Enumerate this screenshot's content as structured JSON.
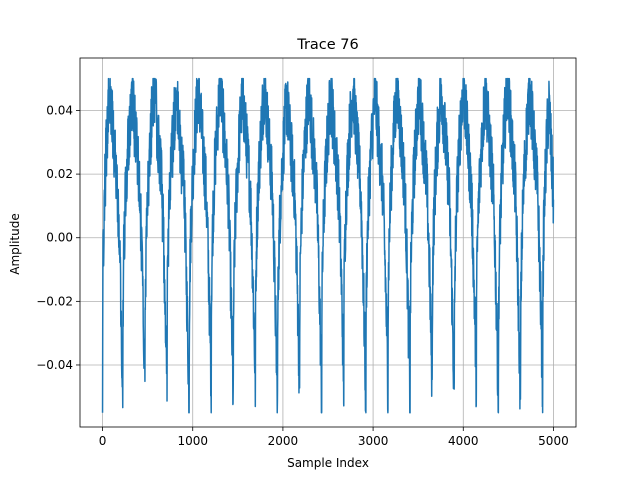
{
  "chart_data": {
    "type": "line",
    "title": "Trace 76",
    "xlabel": "Sample Index",
    "ylabel": "Amplitude",
    "xlim": [
      -250,
      5250
    ],
    "ylim": [
      -0.0595,
      0.0565
    ],
    "xticks": [
      0,
      1000,
      2000,
      3000,
      4000,
      5000
    ],
    "xtick_labels": [
      "0",
      "1000",
      "2000",
      "3000",
      "4000",
      "5000"
    ],
    "yticks": [
      -0.04,
      -0.02,
      0.0,
      0.02,
      0.04
    ],
    "ytick_labels": [
      "−0.04",
      "−0.02",
      "0.00",
      "0.02",
      "0.04"
    ],
    "grid": true,
    "legend": "none",
    "series": [
      {
        "color": "#1f77b4",
        "n_samples": 5000,
        "period_samples": 245,
        "x_range": [
          0,
          5000
        ],
        "y_min": -0.055,
        "y_max": 0.05,
        "envelope": [
          {
            "cycle": 1,
            "peak_x": 82,
            "peak": 0.047,
            "trough_x": 225,
            "trough": -0.048
          },
          {
            "cycle": 2,
            "peak_x": 327,
            "peak": 0.045,
            "trough_x": 470,
            "trough": -0.052
          },
          {
            "cycle": 3,
            "peak_x": 572,
            "peak": 0.047,
            "trough_x": 715,
            "trough": -0.046
          },
          {
            "cycle": 4,
            "peak_x": 817,
            "peak": 0.044,
            "trough_x": 960,
            "trough": -0.052
          },
          {
            "cycle": 5,
            "peak_x": 1062,
            "peak": 0.047,
            "trough_x": 1205,
            "trough": -0.046
          },
          {
            "cycle": 6,
            "peak_x": 1307,
            "peak": 0.048,
            "trough_x": 1450,
            "trough": -0.053
          },
          {
            "cycle": 7,
            "peak_x": 1552,
            "peak": 0.045,
            "trough_x": 1695,
            "trough": -0.047
          },
          {
            "cycle": 8,
            "peak_x": 1797,
            "peak": 0.048,
            "trough_x": 1940,
            "trough": -0.055
          },
          {
            "cycle": 9,
            "peak_x": 2042,
            "peak": 0.043,
            "trough_x": 2185,
            "trough": -0.047
          },
          {
            "cycle": 10,
            "peak_x": 2287,
            "peak": 0.046,
            "trough_x": 2430,
            "trough": -0.05
          },
          {
            "cycle": 11,
            "peak_x": 2532,
            "peak": 0.045,
            "trough_x": 2675,
            "trough": -0.046
          },
          {
            "cycle": 12,
            "peak_x": 2777,
            "peak": 0.047,
            "trough_x": 2920,
            "trough": -0.052
          },
          {
            "cycle": 13,
            "peak_x": 3022,
            "peak": 0.045,
            "trough_x": 3165,
            "trough": -0.047
          },
          {
            "cycle": 14,
            "peak_x": 3267,
            "peak": 0.047,
            "trough_x": 3410,
            "trough": -0.053
          },
          {
            "cycle": 15,
            "peak_x": 3512,
            "peak": 0.046,
            "trough_x": 3655,
            "trough": -0.046
          },
          {
            "cycle": 16,
            "peak_x": 3757,
            "peak": 0.047,
            "trough_x": 3900,
            "trough": -0.052
          },
          {
            "cycle": 17,
            "peak_x": 4002,
            "peak": 0.048,
            "trough_x": 4145,
            "trough": -0.046
          },
          {
            "cycle": 18,
            "peak_x": 4247,
            "peak": 0.046,
            "trough_x": 4390,
            "trough": -0.052
          },
          {
            "cycle": 19,
            "peak_x": 4492,
            "peak": 0.049,
            "trough_x": 4635,
            "trough": -0.053
          },
          {
            "cycle": 20,
            "peak_x": 4737,
            "peak": 0.047,
            "trough_x": 4880,
            "trough": -0.047
          },
          {
            "cycle": 21,
            "peak_x": 4950,
            "peak": 0.042,
            "trough_x": 5000,
            "trough": 0.012
          }
        ]
      }
    ]
  }
}
